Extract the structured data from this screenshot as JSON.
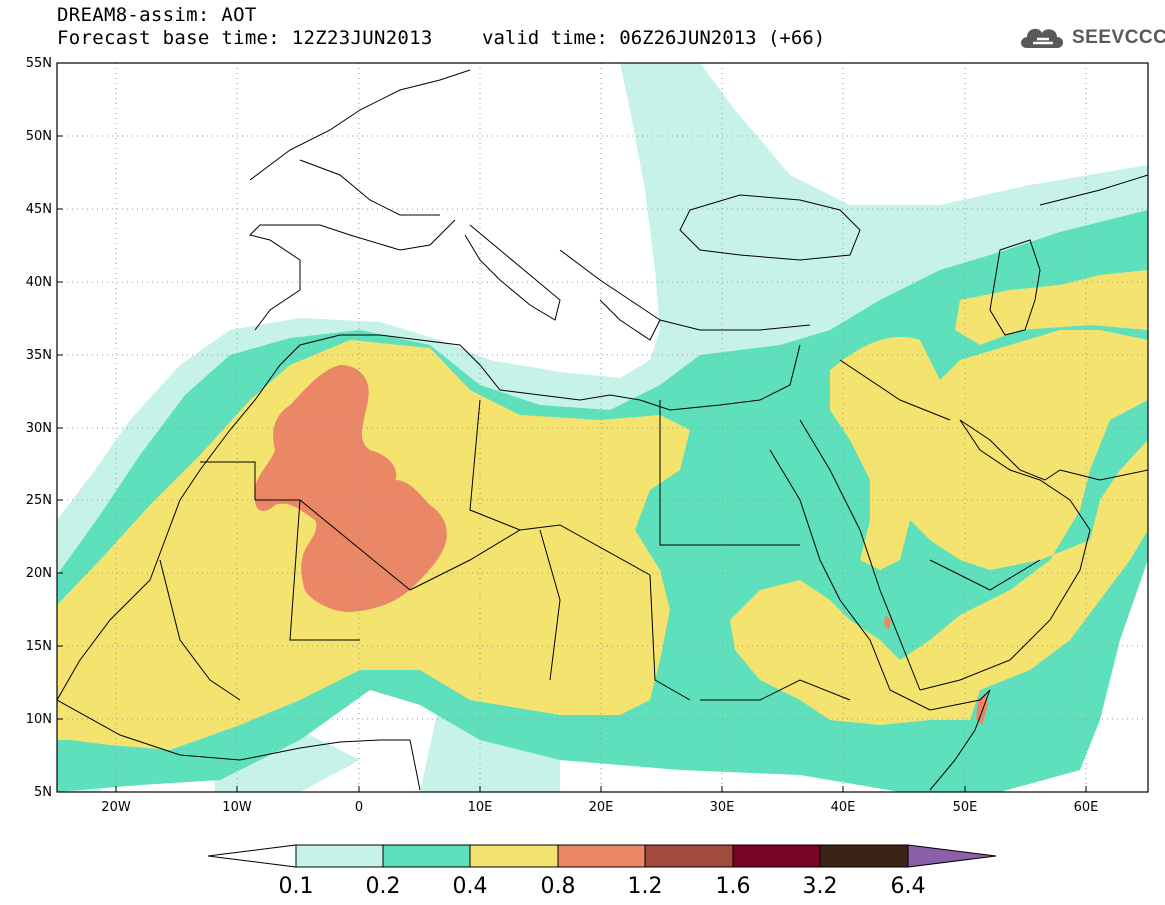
{
  "header": {
    "line1": "DREAM8-assim: AOT",
    "line2": "Forecast base time: 12Z23JUN2013",
    "valid_time": "valid time: 06Z26JUN2013 (+66)"
  },
  "logo": {
    "text": "SEEVCCC",
    "icon": "cloud-icon",
    "color": "#595959"
  },
  "axes": {
    "lat_labels": [
      "55N",
      "50N",
      "45N",
      "40N",
      "35N",
      "30N",
      "25N",
      "20N",
      "15N",
      "10N",
      "5N"
    ],
    "lon_labels": [
      "20W",
      "10W",
      "0",
      "10E",
      "20E",
      "30E",
      "40E",
      "50E",
      "60E"
    ],
    "lat_range": [
      5,
      55
    ],
    "lon_range": [
      -25,
      65
    ],
    "grid": "dotted"
  },
  "colorbar": {
    "labels": [
      "0.1",
      "0.2",
      "0.4",
      "0.8",
      "1.2",
      "1.6",
      "3.2",
      "6.4"
    ],
    "colors": [
      "#ffffff",
      "#c6f2ea",
      "#5ee0bd",
      "#f4e36f",
      "#ea8766",
      "#a14a3e",
      "#7a0428",
      "#3b2415",
      "#8a60a8"
    ]
  },
  "map": {
    "field": "Aerosol Optical Thickness",
    "colors": {
      "c1": "#c6f2ea",
      "c2": "#5ee0bd",
      "c3": "#f4e36f",
      "c4": "#ea8766"
    }
  }
}
